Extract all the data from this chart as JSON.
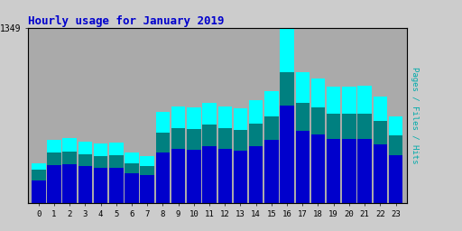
{
  "title": "Hourly usage for January 2019",
  "hours": [
    0,
    1,
    2,
    3,
    4,
    5,
    6,
    7,
    8,
    9,
    10,
    11,
    12,
    13,
    14,
    15,
    16,
    17,
    18,
    19,
    20,
    21,
    22,
    23
  ],
  "hits": [
    310,
    490,
    500,
    475,
    460,
    468,
    390,
    365,
    700,
    745,
    735,
    775,
    745,
    730,
    790,
    860,
    1349,
    1010,
    960,
    895,
    895,
    900,
    820,
    670
  ],
  "files": [
    260,
    390,
    400,
    375,
    360,
    370,
    305,
    285,
    545,
    580,
    570,
    605,
    580,
    565,
    615,
    670,
    1010,
    775,
    735,
    690,
    685,
    690,
    635,
    520
  ],
  "pages": [
    175,
    295,
    300,
    285,
    270,
    275,
    230,
    215,
    390,
    415,
    410,
    440,
    415,
    405,
    440,
    490,
    750,
    560,
    530,
    495,
    495,
    495,
    450,
    370
  ],
  "color_hits": "#00FFFF",
  "color_files": "#008080",
  "color_pages": "#0000CC",
  "bg_color": "#CCCCCC",
  "plot_bg": "#AAAAAA",
  "title_color": "#0000CC",
  "bar_width": 0.3,
  "ylim_max": 1349,
  "ylabel_right": "Pages / Files / Hits"
}
